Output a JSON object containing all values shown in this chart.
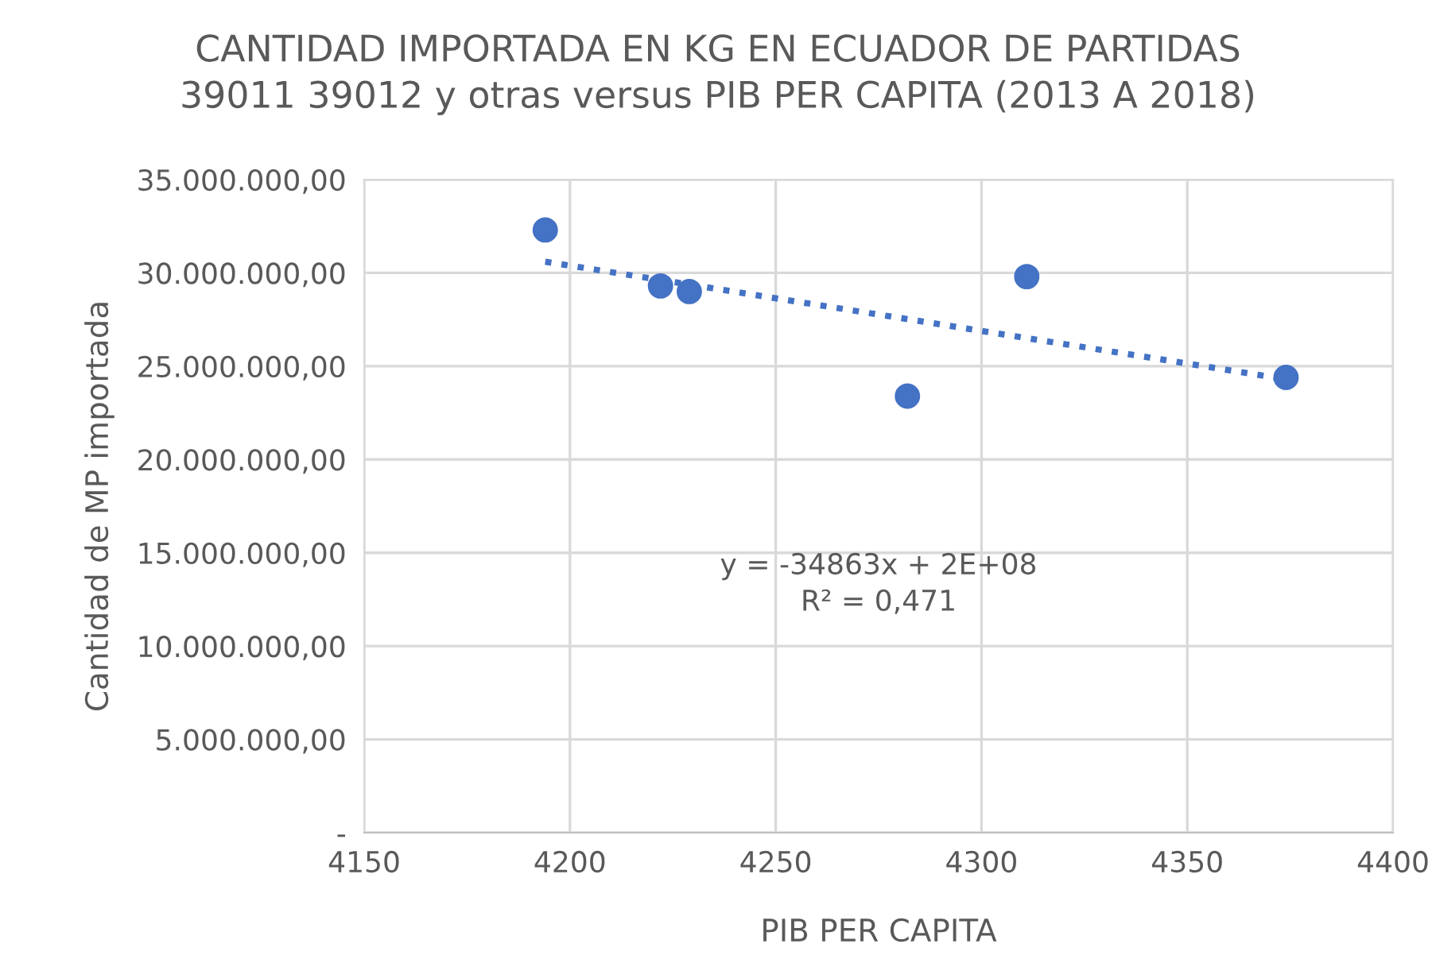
{
  "chart_data": {
    "type": "scatter",
    "title": "CANTIDAD IMPORTADA EN KG EN ECUADOR DE PARTIDAS\n39011 39012 y otras versus PIB PER CAPITA (2013 A 2018)",
    "xlabel": "PIB PER CAPITA",
    "ylabel": "Cantidad de MP importada",
    "series": [
      {
        "color": "#4472c4",
        "marker": "circle",
        "x": [
          4194,
          4222,
          4229,
          4282,
          4311,
          4374
        ],
        "values": [
          32300000,
          29300000,
          29000000,
          23400000,
          29800000,
          24400000
        ]
      },
      {
        "type": "line",
        "color": "#4472c4",
        "line_style": "dotted",
        "x": [
          4194,
          4374
        ],
        "values": [
          30600000,
          24300000
        ]
      }
    ],
    "annotations": [
      "y = -34863x + 2E+08\nR² = 0,471"
    ],
    "xlim": [
      4150,
      4400
    ],
    "xticks": [
      4150,
      4200,
      4250,
      4300,
      4350,
      4400
    ],
    "ylim": [
      0,
      35000000
    ],
    "yticks": [
      {
        "value": 0,
        "label": "-"
      },
      {
        "value": 5000000,
        "label": "5.000.000,00"
      },
      {
        "value": 10000000,
        "label": "10.000.000,00"
      },
      {
        "value": 15000000,
        "label": "15.000.000,00"
      },
      {
        "value": 20000000,
        "label": "20.000.000,00"
      },
      {
        "value": 25000000,
        "label": "25.000.000,00"
      },
      {
        "value": 30000000,
        "label": "30.000.000,00"
      },
      {
        "value": 35000000,
        "label": "35.000.000,00"
      }
    ],
    "grid": true
  }
}
